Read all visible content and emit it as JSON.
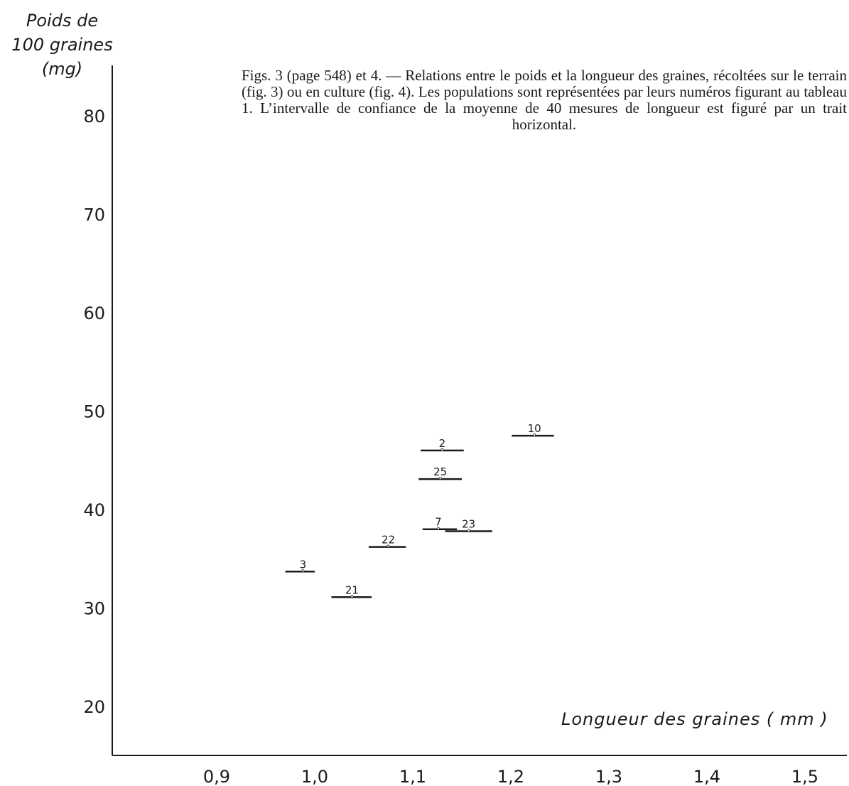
{
  "caption": "Figs. 3 (page 548) et 4. — Relations entre le poids et la longueur des graines, récoltées sur le terrain (fig. 3) ou en culture (fig. 4). Les populations sont représentées par leurs numéros figurant au tableau 1. L’intervalle de confiance de la moyenne de 40 mesures de longueur est figuré par un trait horizontal.",
  "chart_data": {
    "type": "scatter",
    "title": "",
    "ylabel_lines": [
      "Poids de",
      "100 graines",
      "(mg)"
    ],
    "xlabel": "Longueur des graines ( mm )",
    "xlim": [
      0.8,
      1.52
    ],
    "ylim": [
      15,
      85
    ],
    "x_ticks": [
      0.9,
      1.0,
      1.1,
      1.2,
      1.3,
      1.4,
      1.5
    ],
    "x_tick_labels": [
      "0,9",
      "1,0",
      "1,1",
      "1,2",
      "1,3",
      "1,4",
      "1,5"
    ],
    "y_ticks": [
      20,
      30,
      40,
      50,
      60,
      70,
      80
    ],
    "y_tick_labels": [
      "20",
      "30",
      "40",
      "50",
      "60",
      "70",
      "80"
    ],
    "grid": false,
    "points": [
      {
        "label": "3",
        "x": 0.988,
        "y": 33.7,
        "x_low": 0.97,
        "x_high": 1.0
      },
      {
        "label": "21",
        "x": 1.038,
        "y": 31.1,
        "x_low": 1.017,
        "x_high": 1.058
      },
      {
        "label": "22",
        "x": 1.075,
        "y": 36.2,
        "x_low": 1.055,
        "x_high": 1.093
      },
      {
        "label": "7",
        "x": 1.126,
        "y": 38.0,
        "x_low": 1.11,
        "x_high": 1.145
      },
      {
        "label": "23",
        "x": 1.157,
        "y": 37.8,
        "x_low": 1.133,
        "x_high": 1.181
      },
      {
        "label": "25",
        "x": 1.128,
        "y": 43.1,
        "x_low": 1.106,
        "x_high": 1.15
      },
      {
        "label": "2",
        "x": 1.13,
        "y": 46.0,
        "x_low": 1.108,
        "x_high": 1.152
      },
      {
        "label": "10",
        "x": 1.224,
        "y": 47.5,
        "x_low": 1.201,
        "x_high": 1.244
      }
    ]
  }
}
